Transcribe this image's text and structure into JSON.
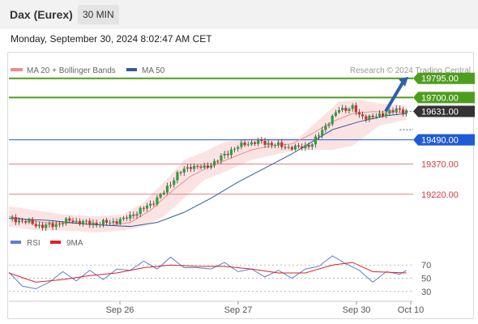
{
  "header": {
    "instrument": "Dax (Eurex)",
    "timeframe": "30 MIN"
  },
  "datetime": "Monday, September 30, 2024 8:02:47 AM CET",
  "credit": "Research © 2024 Trading Central",
  "legend": {
    "main": [
      {
        "label": "MA 20 + Bollinger Bands",
        "color": "#f08c8c"
      },
      {
        "label": "MA 50",
        "color": "#2f5d9b"
      }
    ],
    "indicator": [
      {
        "label": "RSI",
        "color": "#5b7fd6"
      },
      {
        "label": "9MA",
        "color": "#e02020"
      }
    ]
  },
  "colors": {
    "up": "#2e9e3d",
    "down": "#d12c2c",
    "resistance": "#4e9e1e",
    "pivot": "#1f5bd6",
    "support": "#e58080",
    "current": "#333333",
    "arrow": "#2d60a8"
  },
  "chart_data": {
    "type": "line",
    "price_range": [
      19010,
      19830
    ],
    "current_price": 19631.0,
    "levels": [
      {
        "value": 19795.0,
        "label": "19795.00",
        "kind": "resistance"
      },
      {
        "value": 19700.0,
        "label": "19700.00",
        "kind": "resistance"
      },
      {
        "value": 19631.0,
        "label": "19631.00",
        "kind": "current"
      },
      {
        "value": 19490.0,
        "label": "19490.00",
        "kind": "pivot"
      },
      {
        "value": 19370.0,
        "label": "19370.00",
        "kind": "support"
      },
      {
        "value": 19220.0,
        "label": "19220.00",
        "kind": "support"
      }
    ],
    "x_ticks": [
      "Sep 26",
      "Sep 27",
      "Sep 30",
      "Oct 10"
    ],
    "close_path": [
      [
        0,
        19100
      ],
      [
        6,
        19080
      ],
      [
        10,
        19060
      ],
      [
        14,
        19070
      ],
      [
        18,
        19090
      ],
      [
        24,
        19075
      ],
      [
        30,
        19080
      ],
      [
        34,
        19095
      ],
      [
        38,
        19130
      ],
      [
        42,
        19170
      ],
      [
        46,
        19230
      ],
      [
        50,
        19320
      ],
      [
        54,
        19360
      ],
      [
        58,
        19350
      ],
      [
        62,
        19390
      ],
      [
        66,
        19440
      ],
      [
        70,
        19470
      ],
      [
        74,
        19480
      ],
      [
        78,
        19470
      ],
      [
        82,
        19455
      ],
      [
        86,
        19450
      ],
      [
        90,
        19470
      ],
      [
        94,
        19560
      ],
      [
        98,
        19640
      ],
      [
        102,
        19650
      ],
      [
        104,
        19610
      ],
      [
        108,
        19600
      ],
      [
        112,
        19625
      ],
      [
        116,
        19640
      ],
      [
        118,
        19631
      ]
    ],
    "ma20": [
      [
        0,
        19110
      ],
      [
        10,
        19080
      ],
      [
        20,
        19075
      ],
      [
        30,
        19065
      ],
      [
        36,
        19080
      ],
      [
        42,
        19140
      ],
      [
        48,
        19230
      ],
      [
        54,
        19310
      ],
      [
        60,
        19360
      ],
      [
        66,
        19400
      ],
      [
        72,
        19440
      ],
      [
        78,
        19460
      ],
      [
        84,
        19470
      ],
      [
        90,
        19520
      ],
      [
        96,
        19580
      ],
      [
        102,
        19620
      ],
      [
        108,
        19630
      ],
      [
        118,
        19625
      ]
    ],
    "bb_upper": [
      [
        0,
        19160
      ],
      [
        8,
        19140
      ],
      [
        16,
        19120
      ],
      [
        26,
        19110
      ],
      [
        34,
        19120
      ],
      [
        40,
        19180
      ],
      [
        46,
        19280
      ],
      [
        52,
        19390
      ],
      [
        58,
        19430
      ],
      [
        64,
        19480
      ],
      [
        72,
        19500
      ],
      [
        80,
        19500
      ],
      [
        86,
        19500
      ],
      [
        92,
        19590
      ],
      [
        98,
        19680
      ],
      [
        104,
        19690
      ],
      [
        110,
        19670
      ],
      [
        118,
        19660
      ]
    ],
    "bb_lower": [
      [
        0,
        19060
      ],
      [
        8,
        19040
      ],
      [
        16,
        19040
      ],
      [
        26,
        19030
      ],
      [
        34,
        19040
      ],
      [
        40,
        19060
      ],
      [
        46,
        19110
      ],
      [
        52,
        19200
      ],
      [
        58,
        19290
      ],
      [
        64,
        19330
      ],
      [
        72,
        19390
      ],
      [
        80,
        19420
      ],
      [
        86,
        19440
      ],
      [
        90,
        19440
      ],
      [
        96,
        19440
      ],
      [
        102,
        19460
      ],
      [
        110,
        19560
      ],
      [
        118,
        19590
      ]
    ],
    "ma50": [
      [
        0,
        19100
      ],
      [
        12,
        19090
      ],
      [
        24,
        19070
      ],
      [
        36,
        19060
      ],
      [
        44,
        19080
      ],
      [
        52,
        19130
      ],
      [
        60,
        19200
      ],
      [
        68,
        19280
      ],
      [
        76,
        19350
      ],
      [
        84,
        19420
      ],
      [
        90,
        19480
      ],
      [
        96,
        19540
      ],
      [
        104,
        19580
      ],
      [
        112,
        19610
      ],
      [
        118,
        19620
      ]
    ],
    "forecast": {
      "from": 19631,
      "to": 19795
    },
    "rsi_range": [
      15,
      85
    ],
    "rsi_ticks": [
      70,
      50,
      30
    ],
    "rsi": [
      [
        0,
        55
      ],
      [
        4,
        42
      ],
      [
        8,
        30
      ],
      [
        12,
        48
      ],
      [
        16,
        56
      ],
      [
        20,
        50
      ],
      [
        24,
        58
      ],
      [
        28,
        52
      ],
      [
        32,
        60
      ],
      [
        36,
        66
      ],
      [
        40,
        72
      ],
      [
        44,
        68
      ],
      [
        48,
        78
      ],
      [
        52,
        70
      ],
      [
        56,
        62
      ],
      [
        60,
        68
      ],
      [
        64,
        70
      ],
      [
        68,
        64
      ],
      [
        72,
        60
      ],
      [
        76,
        56
      ],
      [
        80,
        58
      ],
      [
        84,
        54
      ],
      [
        88,
        60
      ],
      [
        92,
        72
      ],
      [
        96,
        80
      ],
      [
        100,
        76
      ],
      [
        104,
        58
      ],
      [
        108,
        48
      ],
      [
        112,
        56
      ],
      [
        116,
        60
      ],
      [
        118,
        58
      ]
    ],
    "rsi_ma9": [
      [
        0,
        58
      ],
      [
        8,
        44
      ],
      [
        16,
        48
      ],
      [
        24,
        54
      ],
      [
        32,
        58
      ],
      [
        40,
        66
      ],
      [
        48,
        70
      ],
      [
        56,
        68
      ],
      [
        64,
        68
      ],
      [
        72,
        64
      ],
      [
        80,
        58
      ],
      [
        88,
        58
      ],
      [
        96,
        70
      ],
      [
        102,
        74
      ],
      [
        108,
        60
      ],
      [
        118,
        58
      ]
    ]
  }
}
